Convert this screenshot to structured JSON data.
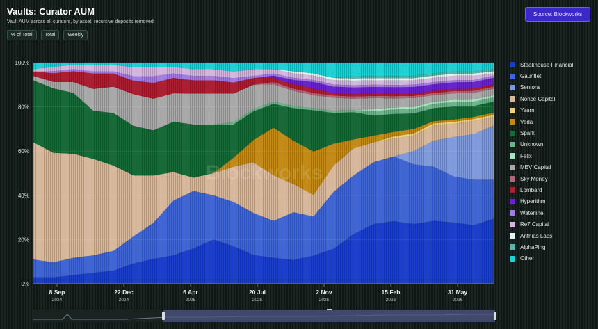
{
  "header": {
    "title": "Vaults: Curator AUM",
    "subtitle": "Vault AUM across all curators, by asset, recursive deposits removed",
    "toggles": [
      "% of Total",
      "Total",
      "Weekly"
    ],
    "source": "Source: Blockworks"
  },
  "watermark": "Blockworks",
  "chart_data": {
    "type": "area",
    "stacked": true,
    "normalized": true,
    "ylim": [
      0,
      100
    ],
    "yticks": [
      "0%",
      "20%",
      "40%",
      "60%",
      "80%",
      "100%"
    ],
    "xticks": [
      {
        "label": "8 Sep",
        "year": "2024"
      },
      {
        "label": "22 Dec",
        "year": "2024"
      },
      {
        "label": "6 Apr",
        "year": "2025"
      },
      {
        "label": "20 Jul",
        "year": "2025"
      },
      {
        "label": "2 Nov",
        "year": "2025"
      },
      {
        "label": "15 Feb",
        "year": "2026"
      },
      {
        "label": "31 May",
        "year": "2026"
      }
    ],
    "x": [
      "Aug 2024",
      "Sep 2024",
      "Oct 2024",
      "Nov 2024",
      "Dec 2024",
      "Jan 2025",
      "Feb 2025",
      "Mar 2025",
      "Apr 2025",
      "May 2025",
      "Jun 2025",
      "Jul 2025",
      "Aug 2025",
      "Sep 2025",
      "Oct 2025",
      "Nov 2025",
      "Dec 2025",
      "Jan 2026",
      "Feb 2026",
      "Mar 2026",
      "Apr 2026",
      "May 2026",
      "Jun 2026",
      "Jul 2026"
    ],
    "series": [
      {
        "name": "Steakhouse Financial",
        "color": "#1a3ecf",
        "values": [
          3,
          3,
          4,
          5,
          6,
          9,
          11,
          13,
          16,
          20,
          17,
          13,
          12,
          11,
          13,
          16,
          22,
          27,
          28,
          27,
          29,
          28,
          27,
          30
        ]
      },
      {
        "name": "Gauntlet",
        "color": "#3f66d8",
        "values": [
          8,
          7,
          8,
          8,
          9,
          12,
          16,
          25,
          26,
          20,
          20,
          19,
          17,
          22,
          18,
          26,
          26,
          28,
          29,
          27,
          25,
          21,
          21,
          18
        ]
      },
      {
        "name": "Sentora",
        "color": "#7f9be0",
        "values": [
          0,
          0,
          0,
          0,
          0,
          0,
          0,
          0,
          0,
          0,
          0,
          0,
          0,
          0,
          0,
          0,
          0,
          0,
          0,
          6,
          12,
          18,
          21,
          25
        ]
      },
      {
        "name": "Nonce Capital",
        "color": "#d9b89a",
        "values": [
          53,
          51,
          48,
          44,
          39,
          27,
          21,
          13,
          6,
          10,
          16,
          23,
          21,
          13,
          10,
          12,
          12,
          9,
          8,
          7,
          7,
          6,
          6,
          4
        ]
      },
      {
        "name": "Yearn",
        "color": "#f0d07a",
        "values": [
          0,
          0,
          0,
          0,
          0,
          0,
          0,
          0,
          0,
          0,
          0,
          0,
          0,
          0,
          0,
          0,
          0,
          0,
          1,
          1,
          1,
          1,
          1,
          1
        ]
      },
      {
        "name": "Veda",
        "color": "#c58a0e",
        "values": [
          0,
          0,
          0,
          0,
          0,
          0,
          0,
          0,
          0,
          0,
          4,
          10,
          22,
          20,
          20,
          10,
          4,
          3,
          2,
          2,
          1,
          1,
          1,
          1
        ]
      },
      {
        "name": "Spark",
        "color": "#146b35",
        "values": [
          28,
          30,
          28,
          22,
          24,
          22,
          20,
          23,
          24,
          22,
          15,
          13,
          11,
          15,
          19,
          14,
          12,
          9,
          8,
          7,
          6,
          6,
          5,
          5
        ]
      },
      {
        "name": "Unknown",
        "color": "#6ab58a",
        "values": [
          0,
          0,
          0,
          0,
          0,
          0,
          0,
          0,
          0,
          0,
          1,
          1,
          1,
          1,
          1,
          1,
          1,
          2,
          2,
          2,
          2,
          2,
          2,
          2
        ]
      },
      {
        "name": "Felix",
        "color": "#a9e3c1",
        "values": [
          0,
          0,
          0,
          0,
          0,
          0,
          0,
          0,
          0,
          0,
          0,
          0,
          0,
          0,
          0,
          0,
          0,
          1,
          1,
          1,
          1,
          1,
          1,
          1
        ]
      },
      {
        "name": "MEV Capital",
        "color": "#a9a9a9",
        "values": [
          2,
          3,
          5,
          10,
          12,
          14,
          14,
          13,
          14,
          14,
          13,
          11,
          8,
          7,
          6,
          6,
          5,
          5,
          4,
          4,
          3,
          3,
          3,
          3
        ]
      },
      {
        "name": "Sky Money",
        "color": "#b56577",
        "values": [
          0,
          0,
          0,
          0,
          0,
          0,
          0,
          0,
          0,
          0,
          0,
          0,
          1,
          1,
          1,
          1,
          1,
          1,
          1,
          1,
          1,
          1,
          1,
          1
        ]
      },
      {
        "name": "Lombard",
        "color": "#b01c30",
        "values": [
          2,
          4,
          5,
          7,
          6,
          6,
          7,
          7,
          6,
          6,
          5,
          3,
          2,
          2,
          2,
          1,
          1,
          1,
          1,
          1,
          1,
          1,
          1,
          1
        ]
      },
      {
        "name": "Hyperithm",
        "color": "#6a22d4",
        "values": [
          0,
          0,
          0,
          0,
          0,
          0,
          0,
          0,
          0,
          0,
          0,
          0,
          1,
          2,
          3,
          3,
          3,
          3,
          3,
          3,
          3,
          3,
          3,
          3
        ]
      },
      {
        "name": "Waterline",
        "color": "#a57be8",
        "values": [
          0,
          1,
          1,
          1,
          1,
          2,
          3,
          2,
          2,
          2,
          2,
          1,
          1,
          1,
          1,
          1,
          1,
          1,
          1,
          1,
          1,
          1,
          1,
          1
        ]
      },
      {
        "name": "Re7 Capital",
        "color": "#d4b6e0",
        "values": [
          1,
          2,
          2,
          3,
          3,
          4,
          4,
          3,
          3,
          3,
          3,
          3,
          2,
          2,
          2,
          2,
          2,
          2,
          2,
          2,
          2,
          2,
          2,
          1
        ]
      },
      {
        "name": "Anthias Labs",
        "color": "#e3f5f2",
        "values": [
          0,
          0,
          0,
          0,
          0,
          0,
          0,
          0,
          0,
          0,
          0,
          0,
          0,
          1,
          1,
          1,
          1,
          1,
          1,
          1,
          1,
          1,
          1,
          1
        ]
      },
      {
        "name": "AlphaPing",
        "color": "#4fb8ae",
        "values": [
          0,
          0,
          0,
          0,
          0,
          0,
          0,
          0,
          0,
          0,
          0,
          0,
          0,
          0,
          0,
          0,
          1,
          1,
          1,
          1,
          1,
          1,
          1,
          1
        ]
      },
      {
        "name": "Other",
        "color": "#19d3d6",
        "values": [
          3,
          2,
          1,
          1,
          1,
          2,
          2,
          2,
          3,
          3,
          4,
          3,
          3,
          4,
          5,
          7,
          6,
          6,
          6,
          6,
          5,
          4,
          4,
          3
        ]
      }
    ]
  }
}
